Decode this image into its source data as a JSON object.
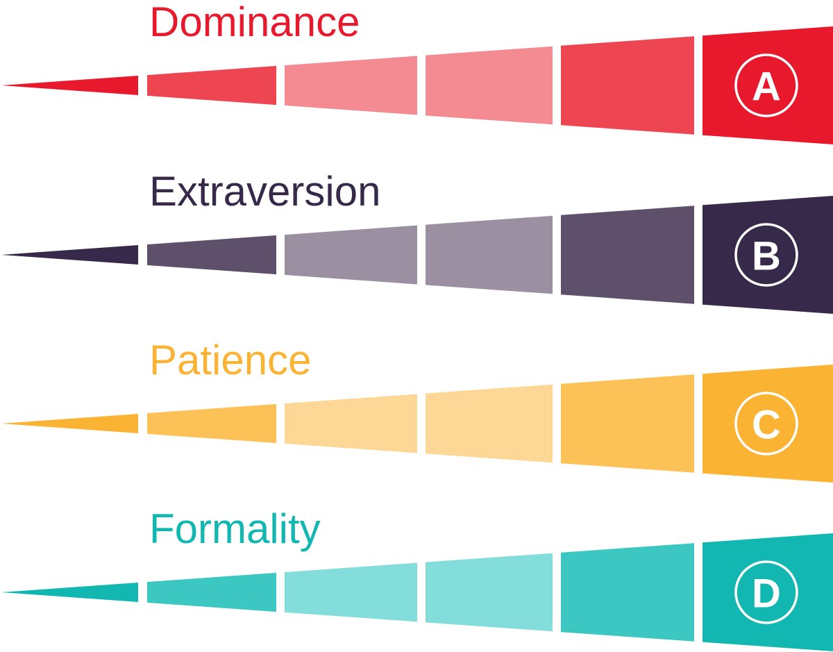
{
  "scales": [
    {
      "title": "Dominance",
      "letter": "A",
      "colors": {
        "dark": "#E8192C",
        "mid": "#EE4552",
        "light": "#F48B93",
        "title": "#E8192C"
      }
    },
    {
      "title": "Extraversion",
      "letter": "B",
      "colors": {
        "dark": "#37294A",
        "mid": "#5E506A",
        "light": "#9A90A2",
        "title": "#37294A"
      }
    },
    {
      "title": "Patience",
      "letter": "C",
      "colors": {
        "dark": "#FBB334",
        "mid": "#FCC157",
        "light": "#FDD796",
        "title": "#FBB334"
      }
    },
    {
      "title": "Formality",
      "letter": "D",
      "colors": {
        "dark": "#12B7B1",
        "mid": "#3CC7C3",
        "light": "#83DDDA",
        "title": "#12B7B1"
      }
    }
  ]
}
